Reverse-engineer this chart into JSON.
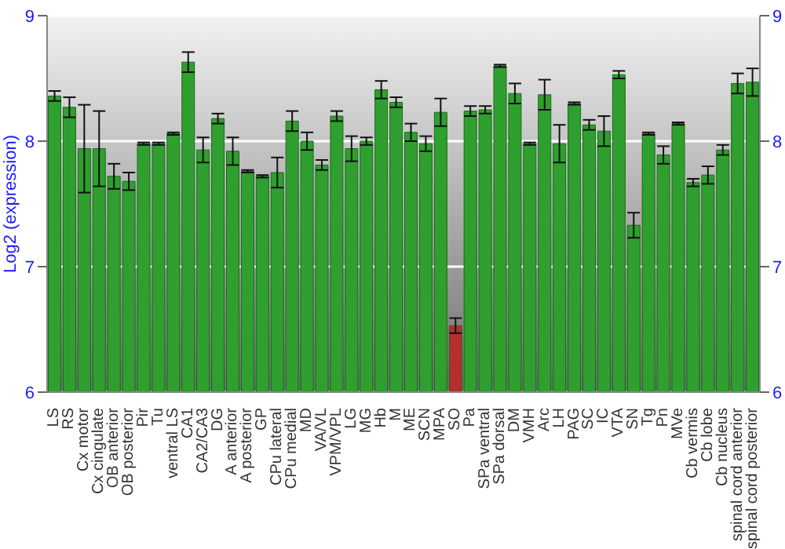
{
  "chart_data": {
    "type": "bar",
    "ylabel": "Log2 (expression)",
    "categories": [
      "LS",
      "RS",
      "Cx motor",
      "Cx cingulate",
      "OB anterior",
      "OB posterior",
      "Pir",
      "Tu",
      "ventral LS",
      "CA1",
      "CA2/CA3",
      "DG",
      "A anterior",
      "A posterior",
      "GP",
      "CPu lateral",
      "CPu medial",
      "MD",
      "VA/VL",
      "VPM/VPL",
      "LG",
      "MG",
      "Hb",
      "M",
      "ME",
      "SCN",
      "MPA",
      "SO",
      "Pa",
      "SPa ventral",
      "SPa dorsal",
      "DM",
      "VMH",
      "Arc",
      "LH",
      "PAG",
      "SC",
      "IC",
      "VTA",
      "SN",
      "Tg",
      "Pn",
      "MVe",
      "Cb vermis",
      "Cb lobe",
      "Cb nucleus",
      "spinal cord anterior",
      "spinal cord posterior"
    ],
    "values": [
      8.36,
      8.27,
      7.94,
      7.94,
      7.72,
      7.68,
      7.98,
      7.98,
      8.06,
      8.63,
      7.93,
      8.18,
      7.92,
      7.76,
      7.72,
      7.75,
      8.16,
      8.0,
      7.81,
      8.2,
      7.94,
      8.0,
      8.41,
      8.31,
      8.07,
      7.98,
      8.23,
      6.53,
      8.24,
      8.25,
      8.6,
      8.38,
      7.98,
      8.37,
      7.98,
      8.3,
      8.13,
      8.08,
      8.53,
      7.33,
      8.06,
      7.89,
      8.14,
      7.67,
      7.73,
      7.93,
      8.46,
      8.47
    ],
    "errors": [
      0.04,
      0.08,
      0.35,
      0.3,
      0.1,
      0.07,
      0.01,
      0.01,
      0.01,
      0.08,
      0.1,
      0.04,
      0.11,
      0.01,
      0.01,
      0.12,
      0.08,
      0.07,
      0.04,
      0.04,
      0.1,
      0.03,
      0.07,
      0.04,
      0.07,
      0.06,
      0.11,
      0.06,
      0.04,
      0.03,
      0.01,
      0.08,
      0.01,
      0.12,
      0.15,
      0.01,
      0.04,
      0.12,
      0.03,
      0.1,
      0.01,
      0.07,
      0.01,
      0.03,
      0.07,
      0.04,
      0.08,
      0.11
    ],
    "colors": [
      "#2f9f2f",
      "#2f9f2f",
      "#2f9f2f",
      "#2f9f2f",
      "#2f9f2f",
      "#2f9f2f",
      "#2f9f2f",
      "#2f9f2f",
      "#2f9f2f",
      "#2f9f2f",
      "#2f9f2f",
      "#2f9f2f",
      "#2f9f2f",
      "#2f9f2f",
      "#2f9f2f",
      "#2f9f2f",
      "#2f9f2f",
      "#2f9f2f",
      "#2f9f2f",
      "#2f9f2f",
      "#2f9f2f",
      "#2f9f2f",
      "#2f9f2f",
      "#2f9f2f",
      "#2f9f2f",
      "#2f9f2f",
      "#2f9f2f",
      "#b52f2f",
      "#2f9f2f",
      "#2f9f2f",
      "#2f9f2f",
      "#2f9f2f",
      "#2f9f2f",
      "#2f9f2f",
      "#2f9f2f",
      "#2f9f2f",
      "#2f9f2f",
      "#2f9f2f",
      "#2f9f2f",
      "#2f9f2f",
      "#2f9f2f",
      "#2f9f2f",
      "#2f9f2f",
      "#2f9f2f",
      "#2f9f2f",
      "#2f9f2f",
      "#2f9f2f",
      "#2f9f2f"
    ],
    "ylim": [
      6,
      9
    ],
    "yticks": [
      6,
      7,
      8,
      9
    ],
    "y2lim": [
      6,
      9
    ],
    "y2ticks": [
      6,
      7,
      8,
      9
    ],
    "grid": "y"
  }
}
